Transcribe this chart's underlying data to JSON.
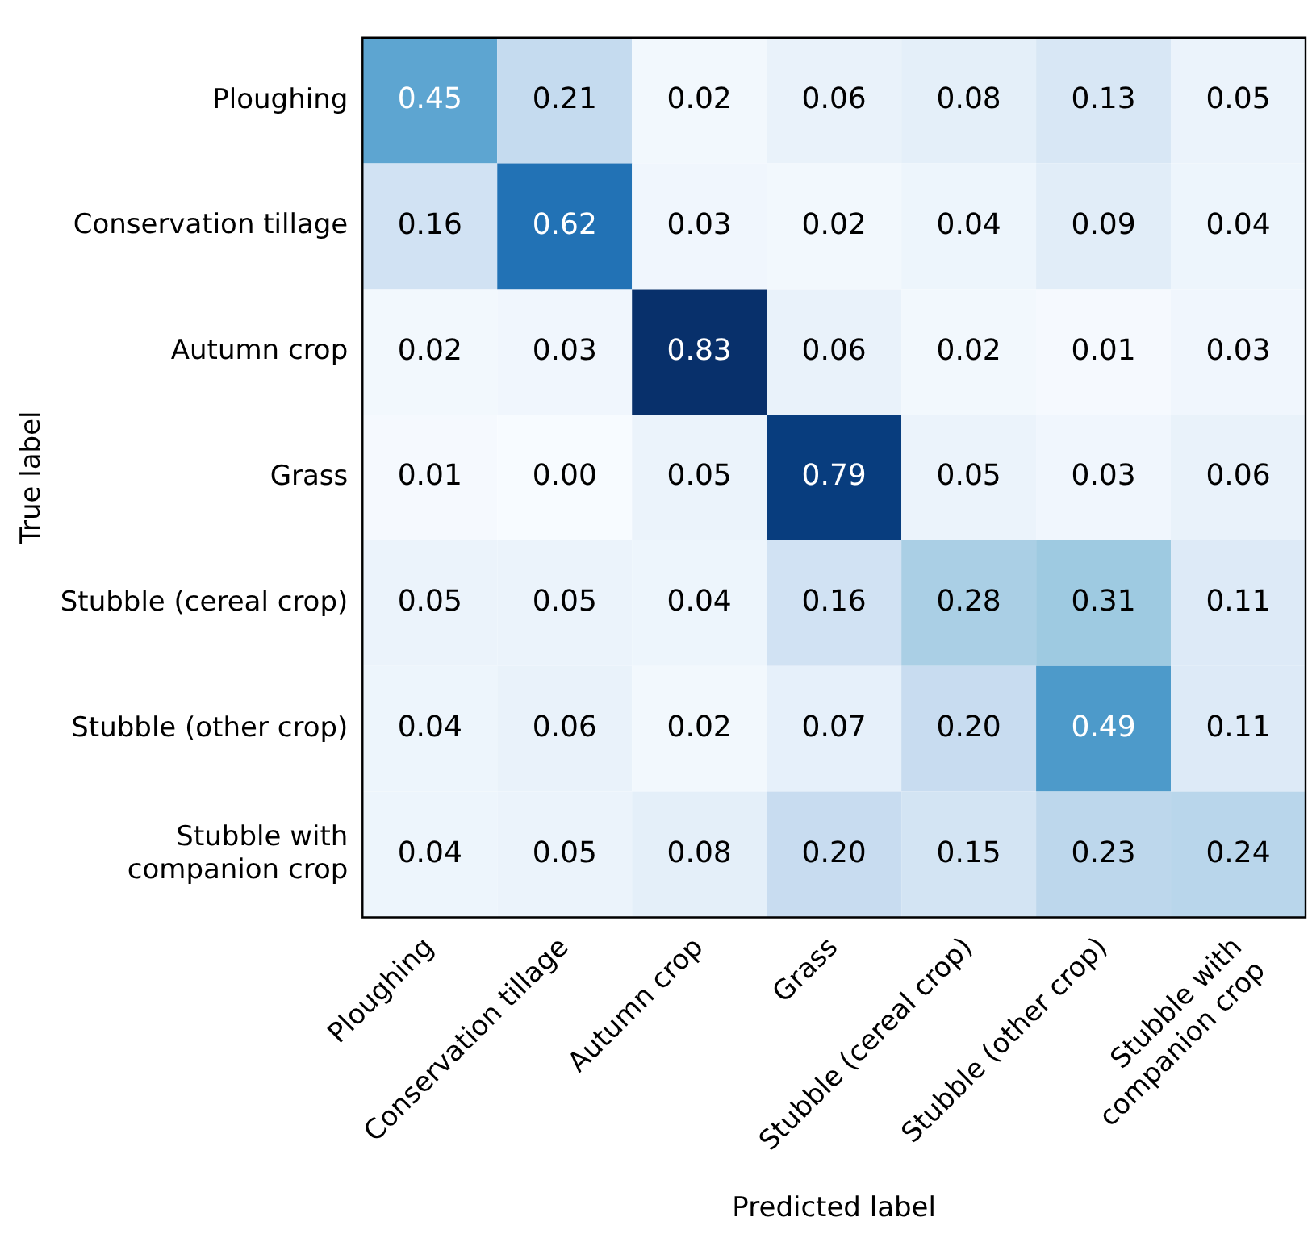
{
  "chart_data": {
    "type": "heatmap",
    "xlabel": "Predicted label",
    "ylabel": "True label",
    "categories": [
      "Ploughing",
      "Conservation tillage",
      "Autumn crop",
      "Grass",
      "Stubble (cereal crop)",
      "Stubble (other crop)",
      "Stubble with companion crop"
    ],
    "y_categories": [
      "Ploughing",
      "Conservation tillage",
      "Autumn crop",
      "Grass",
      "Stubble (cereal crop)",
      "Stubble (other crop)",
      "Stubble with companion crop"
    ],
    "cells": [
      [
        0.45,
        0.21,
        0.02,
        0.06,
        0.08,
        0.13,
        0.05
      ],
      [
        0.16,
        0.62,
        0.03,
        0.02,
        0.04,
        0.09,
        0.04
      ],
      [
        0.02,
        0.03,
        0.83,
        0.06,
        0.02,
        0.01,
        0.03
      ],
      [
        0.01,
        0.0,
        0.05,
        0.79,
        0.05,
        0.03,
        0.06
      ],
      [
        0.05,
        0.05,
        0.04,
        0.16,
        0.28,
        0.31,
        0.11
      ],
      [
        0.04,
        0.06,
        0.02,
        0.07,
        0.2,
        0.49,
        0.11
      ],
      [
        0.04,
        0.05,
        0.08,
        0.2,
        0.15,
        0.23,
        0.24
      ]
    ],
    "cell_labels": [
      [
        "0.45",
        "0.21",
        "0.02",
        "0.06",
        "0.08",
        "0.13",
        "0.05"
      ],
      [
        "0.16",
        "0.62",
        "0.03",
        "0.02",
        "0.04",
        "0.09",
        "0.04"
      ],
      [
        "0.02",
        "0.03",
        "0.83",
        "0.06",
        "0.02",
        "0.01",
        "0.03"
      ],
      [
        "0.01",
        "0.00",
        "0.05",
        "0.79",
        "0.05",
        "0.03",
        "0.06"
      ],
      [
        "0.05",
        "0.05",
        "0.04",
        "0.16",
        "0.28",
        "0.31",
        "0.11"
      ],
      [
        "0.04",
        "0.06",
        "0.02",
        "0.07",
        "0.20",
        "0.49",
        "0.11"
      ],
      [
        "0.04",
        "0.05",
        "0.08",
        "0.20",
        "0.15",
        "0.23",
        "0.24"
      ]
    ],
    "data_labels": true,
    "grid": false
  }
}
